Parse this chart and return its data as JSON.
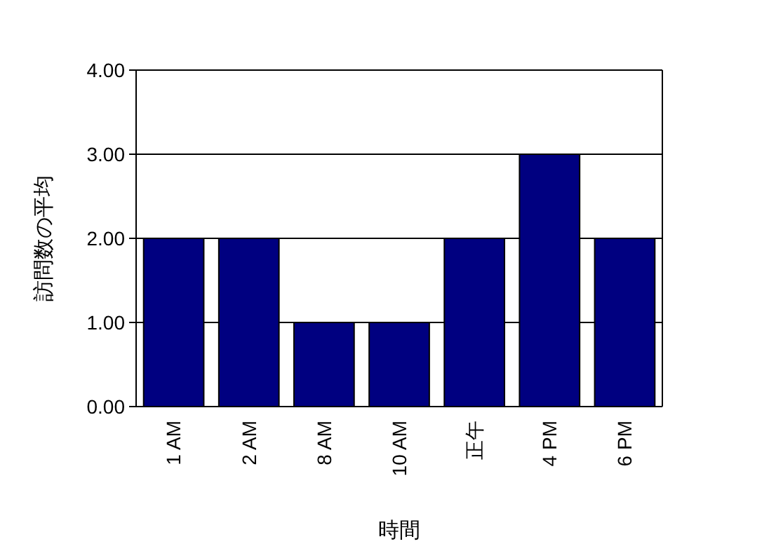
{
  "chart_data": {
    "type": "bar",
    "xlabel": "時間",
    "ylabel": "訪問数の平均",
    "categories": [
      "1 AM",
      "2 AM",
      "8 AM",
      "10 AM",
      "正午",
      "4 PM",
      "6 PM"
    ],
    "values": [
      2,
      2,
      1,
      1,
      2,
      3,
      2
    ],
    "color": "#000080",
    "ylim": [
      0,
      4
    ],
    "yticks": [
      {
        "value": 0,
        "label": "0.00"
      },
      {
        "value": 1,
        "label": "1.00"
      },
      {
        "value": 2,
        "label": "2.00"
      },
      {
        "value": 3,
        "label": "3.00"
      },
      {
        "value": 4,
        "label": "4.00"
      }
    ],
    "grid": "y"
  }
}
